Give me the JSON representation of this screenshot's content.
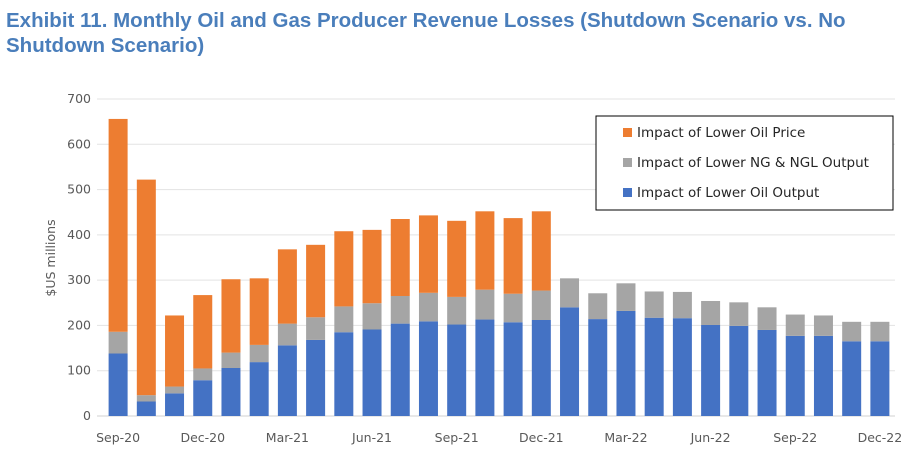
{
  "chart_data": {
    "type": "bar",
    "stacked": true,
    "title": "Exhibit 11. Monthly Oil and Gas Producer Revenue Losses (Shutdown Scenario vs. No Shutdown Scenario)",
    "xlabel": "",
    "ylabel": "$US millions",
    "ylim": [
      0,
      700
    ],
    "yticks": [
      0,
      100,
      200,
      300,
      400,
      500,
      600,
      700
    ],
    "grid": true,
    "legend_position": "top-right",
    "categories": [
      "Sep-20",
      "Oct-20",
      "Nov-20",
      "Dec-20",
      "Jan-21",
      "Feb-21",
      "Mar-21",
      "Apr-21",
      "May-21",
      "Jun-21",
      "Jul-21",
      "Aug-21",
      "Sep-21",
      "Oct-21",
      "Nov-21",
      "Dec-21",
      "Jan-22",
      "Feb-22",
      "Mar-22",
      "Apr-22",
      "May-22",
      "Jun-22",
      "Jul-22",
      "Aug-22",
      "Sep-22",
      "Oct-22",
      "Nov-22",
      "Dec-22"
    ],
    "xtick_labels": [
      "Sep-20",
      "Dec-20",
      "Mar-21",
      "Jun-21",
      "Sep-21",
      "Dec-21",
      "Mar-22",
      "Jun-22",
      "Sep-22",
      "Dec-22"
    ],
    "series": [
      {
        "name": "Impact of Lower Oil Output",
        "color": "#4472C4",
        "values": [
          138,
          32,
          50,
          79,
          106,
          119,
          156,
          168,
          185,
          191,
          204,
          209,
          202,
          213,
          207,
          212,
          240,
          214,
          232,
          217,
          216,
          201,
          199,
          190,
          177,
          177,
          165,
          165
        ]
      },
      {
        "name": "Impact of Lower NG & NGL Output",
        "color": "#A5A5A5",
        "values": [
          48,
          14,
          15,
          26,
          34,
          38,
          48,
          50,
          57,
          58,
          61,
          63,
          61,
          66,
          63,
          65,
          64,
          57,
          61,
          58,
          58,
          53,
          52,
          50,
          47,
          45,
          43,
          43
        ]
      },
      {
        "name": "Impact of Lower Oil Price",
        "color": "#ED7D31",
        "values": [
          470,
          476,
          157,
          162,
          162,
          147,
          164,
          160,
          166,
          162,
          170,
          171,
          168,
          173,
          167,
          175,
          0,
          0,
          0,
          0,
          0,
          0,
          0,
          0,
          0,
          0,
          0,
          0
        ]
      }
    ],
    "legend_order": [
      "Impact of Lower Oil Price",
      "Impact of Lower NG & NGL Output",
      "Impact of Lower Oil Output"
    ]
  }
}
